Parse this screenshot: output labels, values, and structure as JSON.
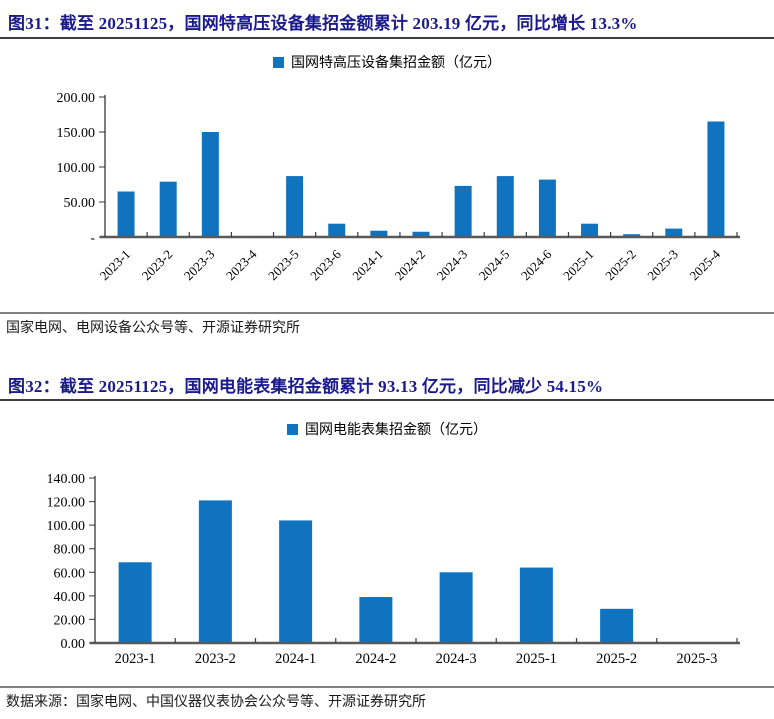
{
  "figure1": {
    "title": "图31：截至 20251125，国网特高压设备集招金额累计 203.19 亿元，同比增长 13.3%",
    "legend": "国网特高压设备集招金额（亿元）",
    "source": "国家电网、电网设备公众号等、开源证券研究所"
  },
  "figure2": {
    "title": "图32：截至 20251125，国网电能表集招金额累计 93.13 亿元，同比减少 54.15%",
    "legend": "国网电能表集招金额（亿元）",
    "source": "数据来源：国家电网、中国仪器仪表协会公众号等、开源证券研究所"
  },
  "colors": {
    "bar": "#1073c0",
    "title_text": "#1a1a8c",
    "axis": "#595959",
    "tick_text": "#000000"
  },
  "chart_data": [
    {
      "type": "bar",
      "title": "图31：截至 20251125，国网特高压设备集招金额累计 203.19 亿元，同比增长 13.3%",
      "legend": "国网特高压设备集招金额（亿元）",
      "categories": [
        "2023-1",
        "2023-2",
        "2023-3",
        "2023-4",
        "2023-5",
        "2023-6",
        "2024-1",
        "2024-2",
        "2024-3",
        "2024-5",
        "2024-6",
        "2025-1",
        "2025-2",
        "2025-3",
        "2025-4"
      ],
      "values": [
        65,
        79,
        150,
        1.5,
        87,
        19,
        9,
        7.5,
        73,
        87,
        82,
        19,
        4,
        12,
        165
      ],
      "xlabel": "",
      "ylabel": "",
      "ylim": [
        0,
        200
      ],
      "ytick_step": 50,
      "ytick_labels": [
        "-",
        "50.00",
        "100.00",
        "150.00",
        "200.00"
      ],
      "x_label_rotation": -45,
      "grid": false,
      "legend_position": "top-center"
    },
    {
      "type": "bar",
      "title": "图32：截至 20251125，国网电能表集招金额累计 93.13 亿元，同比减少 54.15%",
      "legend": "国网电能表集招金额（亿元）",
      "categories": [
        "2023-1",
        "2023-2",
        "2024-1",
        "2024-2",
        "2024-3",
        "2025-1",
        "2025-2",
        "2025-3"
      ],
      "values": [
        68.5,
        121,
        104,
        39,
        60,
        64,
        29,
        0
      ],
      "xlabel": "",
      "ylabel": "",
      "ylim": [
        0,
        140
      ],
      "ytick_step": 20,
      "ytick_labels": [
        "0.00",
        "20.00",
        "40.00",
        "60.00",
        "80.00",
        "100.00",
        "120.00",
        "140.00"
      ],
      "x_label_rotation": 0,
      "grid": false,
      "legend_position": "top-center"
    }
  ]
}
